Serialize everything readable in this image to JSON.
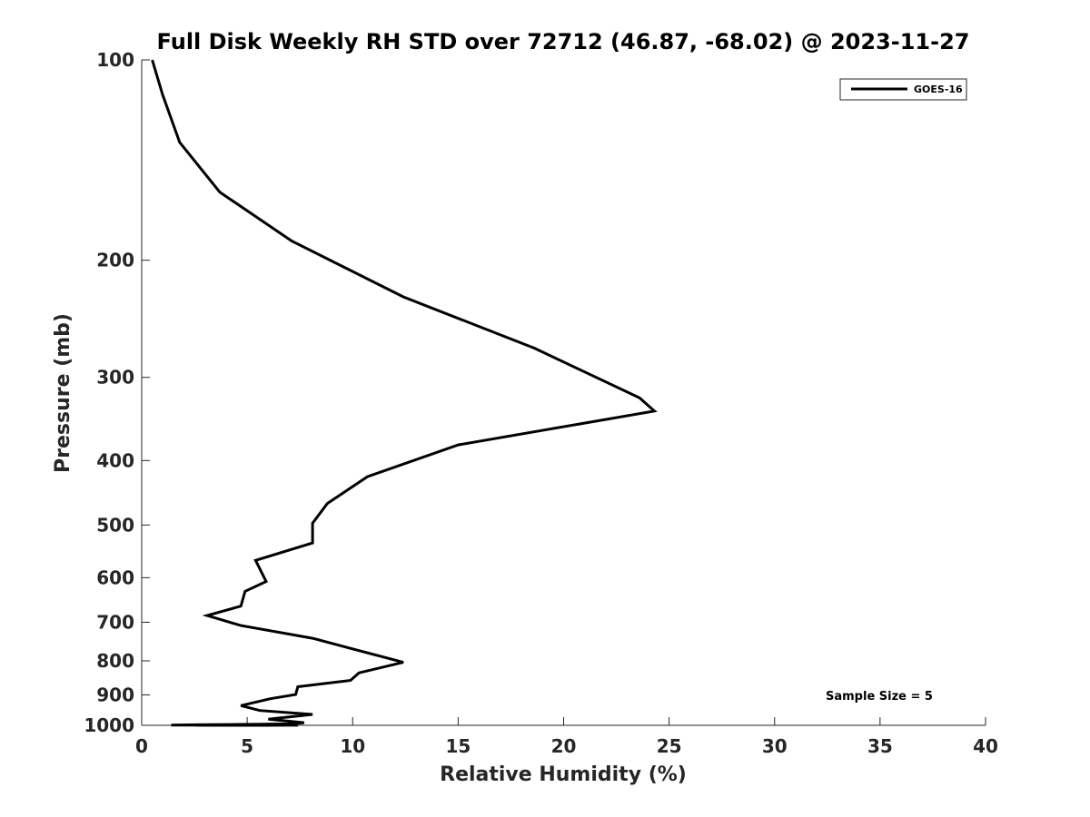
{
  "chart_data": {
    "type": "line",
    "title": "Full Disk Weekly RH STD over 72712 (46.87, -68.02) @ 2023-11-27",
    "xlabel": "Relative Humidity (%)",
    "ylabel": "Pressure (mb)",
    "xlim": [
      0,
      40
    ],
    "ylim": [
      1000,
      100
    ],
    "y_scale": "log",
    "x_ticks": [
      0,
      5,
      10,
      15,
      20,
      25,
      30,
      35,
      40
    ],
    "y_ticks": [
      100,
      200,
      300,
      400,
      500,
      600,
      700,
      800,
      900,
      1000
    ],
    "grid": false,
    "legend": {
      "position": "top-right",
      "entries": [
        "GOES-16"
      ]
    },
    "annotation": "Sample Size = 5",
    "series": [
      {
        "name": "GOES-16",
        "color": "#000000",
        "x": [
          0.5,
          1.0,
          1.8,
          3.7,
          7.1,
          12.4,
          18.6,
          23.6,
          24.3,
          15.0,
          10.7,
          8.8,
          8.1,
          8.1,
          5.4,
          5.9,
          4.9,
          4.7,
          3.1,
          4.7,
          8.1,
          12.4,
          10.3,
          9.9,
          7.4,
          7.3,
          6.1,
          4.7,
          5.6,
          8.1,
          6.0,
          7.7,
          7.2,
          4.7,
          2.6,
          1.4,
          1.7,
          7.4,
          7.0,
          5.9,
          4.2,
          6.1,
          2.6
        ],
        "y": [
          100,
          113,
          133,
          158,
          187,
          227,
          271,
          322,
          337,
          379,
          423,
          464,
          497,
          532,
          565,
          608,
          629,
          662,
          684,
          708,
          740,
          804,
          834,
          856,
          875,
          899,
          912,
          934,
          950,
          963,
          979,
          991,
          995,
          997,
          998,
          999,
          999.5,
          999.7,
          999.8,
          999.9,
          1000,
          1000,
          1000
        ]
      }
    ]
  }
}
